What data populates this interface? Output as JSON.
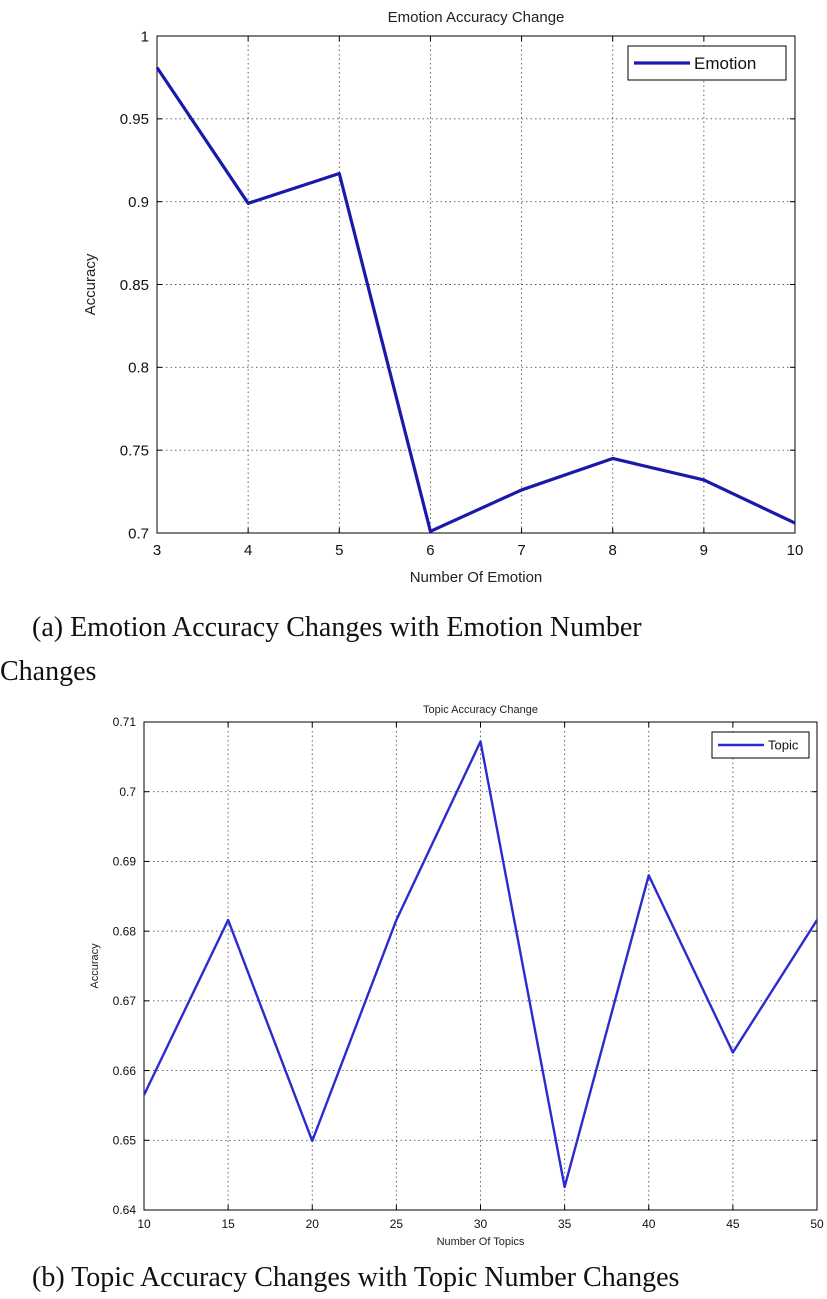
{
  "chart_data": [
    {
      "type": "line",
      "title": "Emotion Accuracy Change",
      "xlabel": "Number Of Emotion",
      "ylabel": "Accuracy",
      "x": [
        3,
        4,
        5,
        6,
        7,
        8,
        9,
        10
      ],
      "series": [
        {
          "name": "Emotion",
          "values": [
            0.981,
            0.899,
            0.917,
            0.701,
            0.726,
            0.745,
            0.732,
            0.706
          ],
          "color": "#1a1aaa"
        }
      ],
      "xlim": [
        3,
        10
      ],
      "ylim": [
        0.7,
        1.0
      ],
      "xticks": [
        "3",
        "4",
        "5",
        "6",
        "7",
        "8",
        "9",
        "10"
      ],
      "yticks": [
        "0.7",
        "0.75",
        "0.8",
        "0.85",
        "0.9",
        "0.95",
        "1"
      ],
      "grid": true,
      "legend_position": "top-right",
      "caption_line1": "(a) Emotion Accuracy Changes with Emotion Number",
      "caption_line2": "Changes"
    },
    {
      "type": "line",
      "title": "Topic Accuracy Change",
      "xlabel": "Number Of Topics",
      "ylabel": "Accuracy",
      "x": [
        10,
        15,
        20,
        25,
        30,
        35,
        40,
        45,
        50
      ],
      "series": [
        {
          "name": "Topic",
          "values": [
            0.6565,
            0.6816,
            0.6499,
            0.6816,
            0.7072,
            0.6433,
            0.688,
            0.6626,
            0.6816
          ],
          "color": "#2b2bd0"
        }
      ],
      "xlim": [
        10,
        50
      ],
      "ylim": [
        0.64,
        0.71
      ],
      "xticks": [
        "10",
        "15",
        "20",
        "25",
        "30",
        "35",
        "40",
        "45",
        "50"
      ],
      "yticks": [
        "0.64",
        "0.65",
        "0.66",
        "0.67",
        "0.68",
        "0.69",
        "0.7",
        "0.71"
      ],
      "grid": true,
      "legend_position": "top-right",
      "caption": "(b) Topic Accuracy Changes with Topic Number Changes"
    }
  ]
}
